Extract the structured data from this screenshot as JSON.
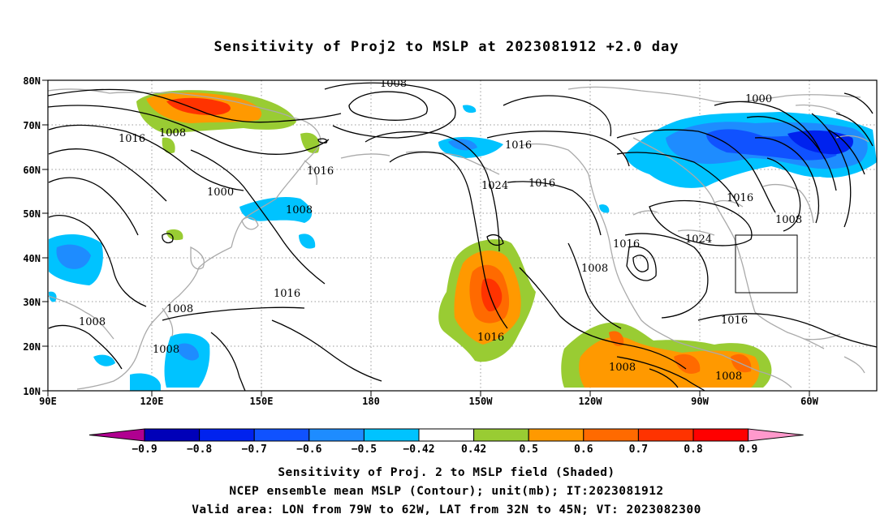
{
  "title": "Sensitivity of Proj2 to MSLP at 2023081912 +2.0 day",
  "axes": {
    "lat_labels": [
      "80N",
      "70N",
      "60N",
      "50N",
      "40N",
      "30N",
      "20N",
      "10N"
    ],
    "lon_labels": [
      "90E",
      "120E",
      "150E",
      "180",
      "150W",
      "120W",
      "90W",
      "60W"
    ]
  },
  "contour_labels": [
    {
      "text": "1008"
    },
    {
      "text": "1000"
    },
    {
      "text": "1016"
    },
    {
      "text": "1008"
    },
    {
      "text": "1000"
    },
    {
      "text": "1008"
    },
    {
      "text": "1016"
    },
    {
      "text": "1024"
    },
    {
      "text": "1016"
    },
    {
      "text": "1016"
    },
    {
      "text": "1008"
    },
    {
      "text": "1016"
    },
    {
      "text": "1024"
    },
    {
      "text": "1016"
    },
    {
      "text": "1008"
    },
    {
      "text": "1008"
    },
    {
      "text": "1016"
    },
    {
      "text": "1008"
    },
    {
      "text": "1008"
    },
    {
      "text": "1008"
    },
    {
      "text": "1008"
    },
    {
      "text": "1016"
    },
    {
      "text": "1016"
    }
  ],
  "colorbar": {
    "labels": [
      "-0.9",
      "-0.8",
      "-0.7",
      "-0.6",
      "-0.5",
      "-0.42",
      "0.42",
      "0.5",
      "0.6",
      "0.7",
      "0.8",
      "0.9"
    ],
    "colors": [
      "#b00090",
      "#0000b8",
      "#0022ee",
      "#1052ff",
      "#1e8cff",
      "#00c3ff",
      "#ffffff",
      "#99cc33",
      "#ff9900",
      "#ff6a00",
      "#ff3300",
      "#ff0000",
      "#ff99cc"
    ]
  },
  "captions": {
    "line1": "Sensitivity of Proj. 2 to MSLP field (Shaded)",
    "line2": "NCEP ensemble mean MSLP (Contour); unit(mb); IT:2023081912",
    "line3": "Valid area: LON from 79W to 62W, LAT from 32N to 45N; VT: 2023082300"
  }
}
